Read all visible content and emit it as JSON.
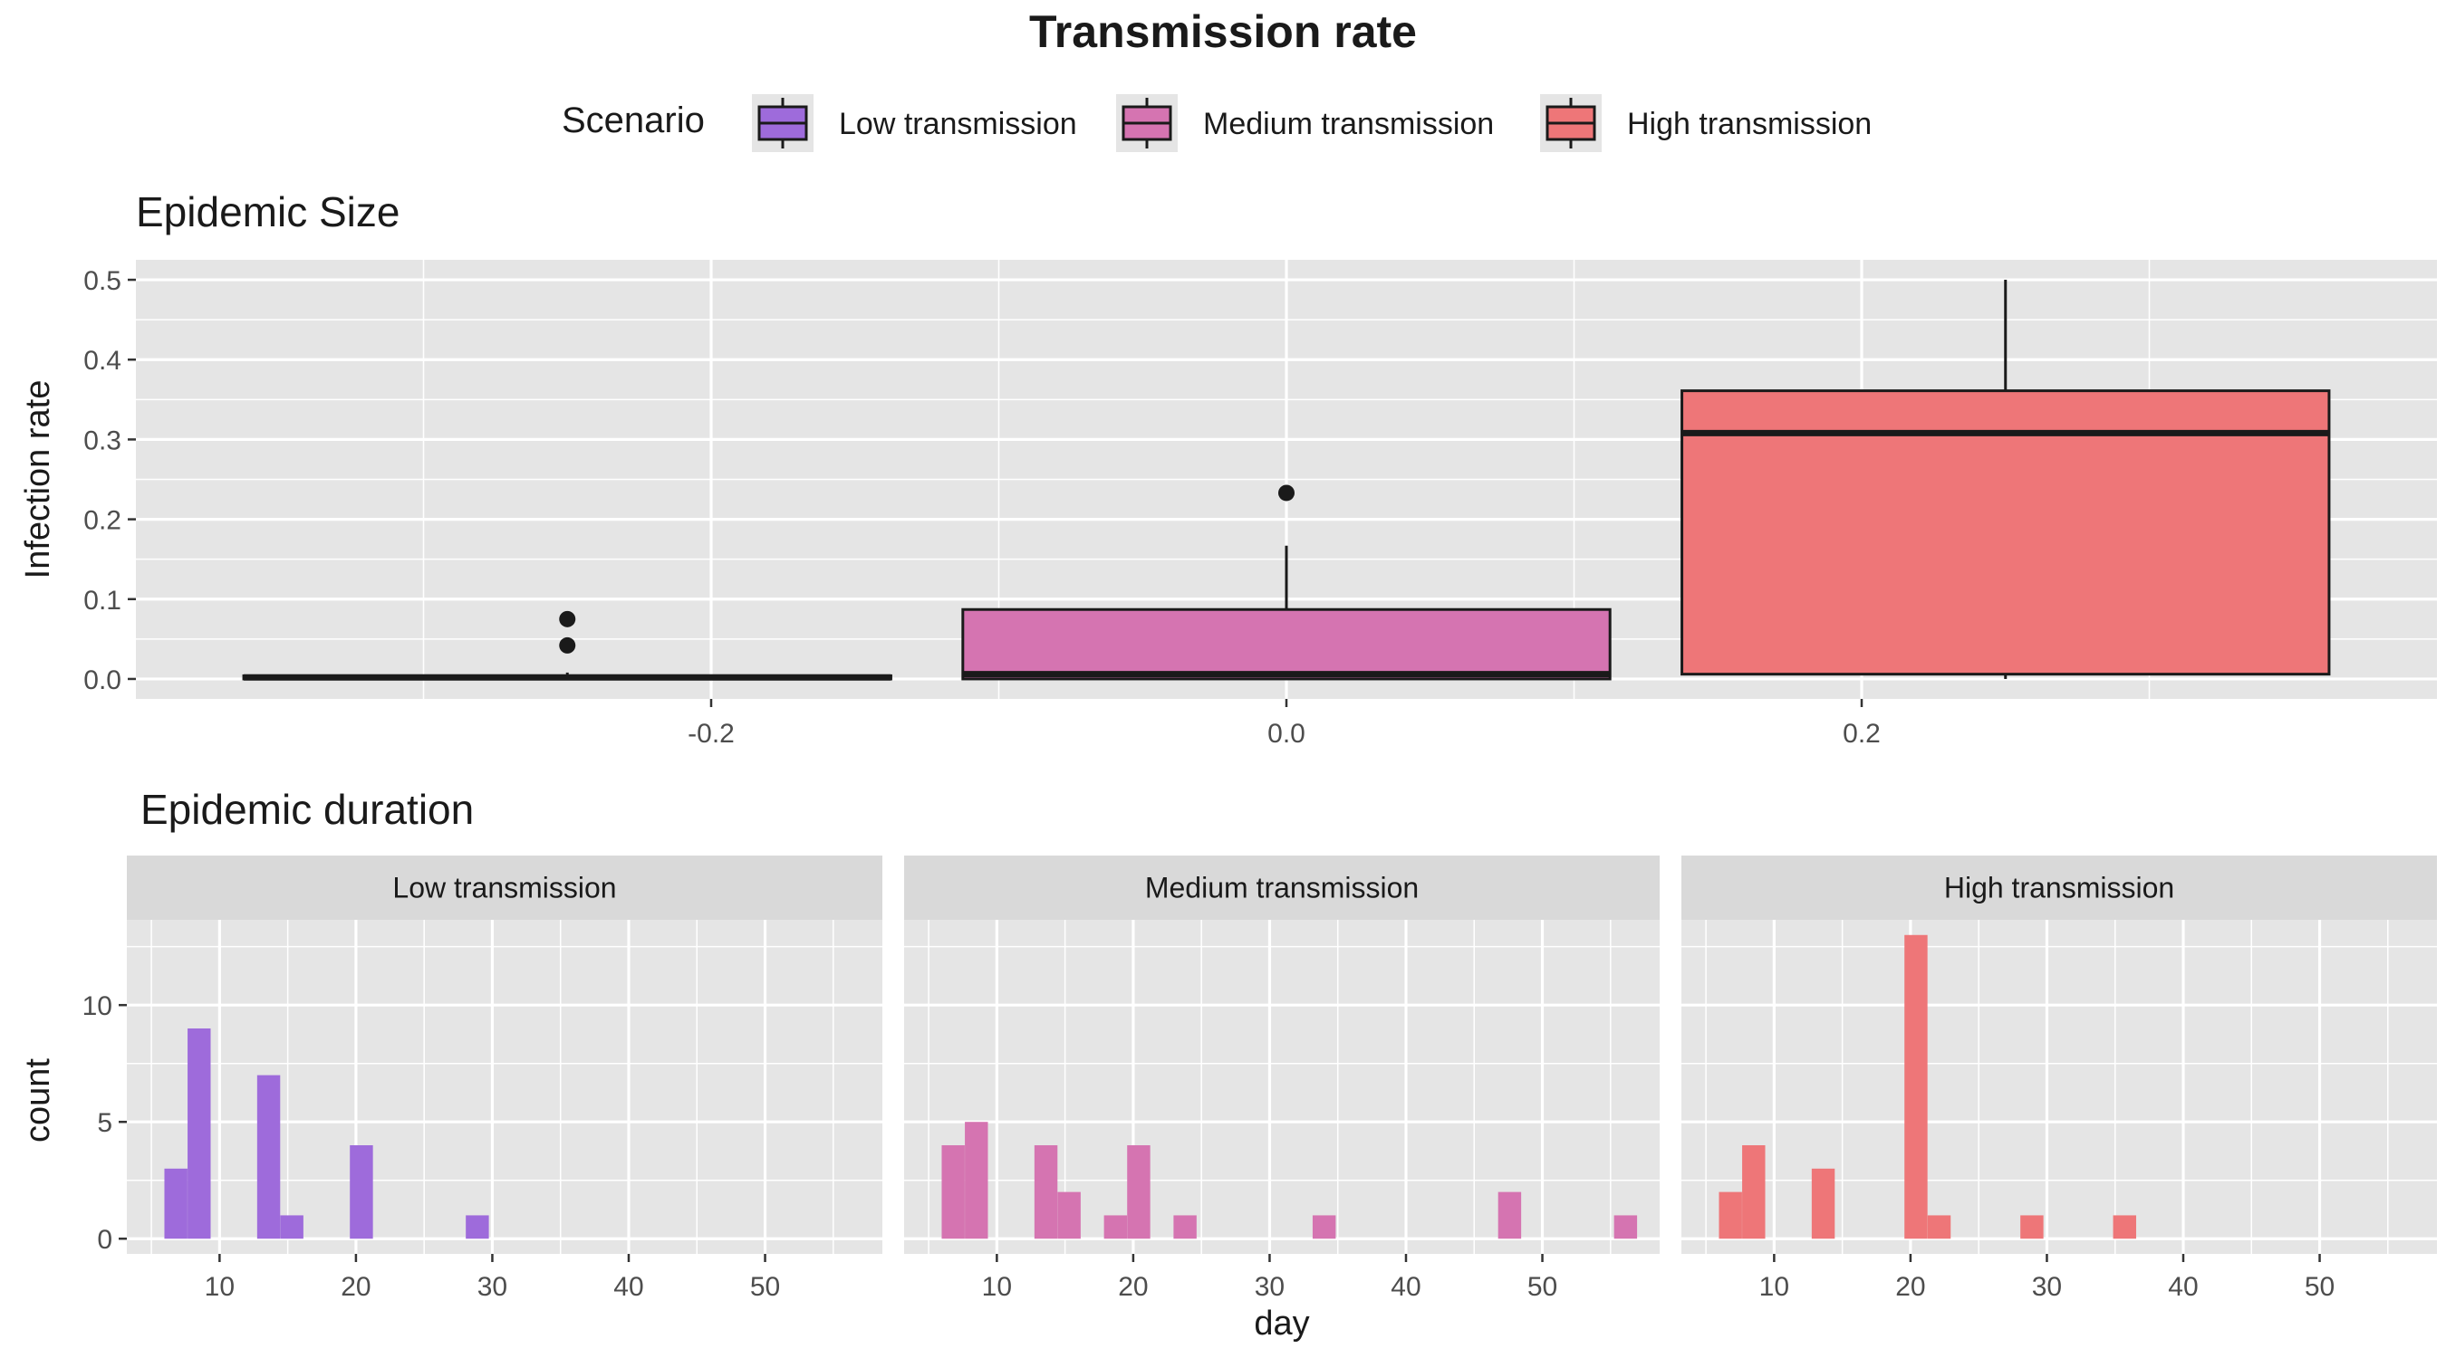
{
  "title": "Transmission rate",
  "legend": {
    "title": "Scenario",
    "placement": "top",
    "items": [
      {
        "label": "Low transmission",
        "color": "#9E6BDB"
      },
      {
        "label": "Medium transmission",
        "color": "#D574B1"
      },
      {
        "label": "High transmission",
        "color": "#EE7678"
      }
    ]
  },
  "colors": {
    "panel_bg": "#E5E5E5",
    "grid": "#FFFFFF",
    "strip_bg": "#D9D9D9",
    "outline": "#1A1A1A"
  },
  "chart_data": [
    {
      "type": "box",
      "title": "Epidemic Size",
      "xlabel": "",
      "ylabel": "Infection rate",
      "xlim": [
        -0.4,
        0.4
      ],
      "ylim": [
        -0.025,
        0.525
      ],
      "xticks": [
        -0.2,
        0.0,
        0.2
      ],
      "xtick_labels": [
        "-0.2",
        "0.0",
        "0.2"
      ],
      "yticks": [
        0.0,
        0.1,
        0.2,
        0.3,
        0.4,
        0.5
      ],
      "ytick_labels": [
        "0.0",
        "0.1",
        "0.2",
        "0.3",
        "0.4",
        "0.5"
      ],
      "grid": true,
      "boxes": [
        {
          "name": "Low transmission",
          "x_center": -0.25,
          "x_range": [
            -0.3625,
            -0.1375
          ],
          "min": 0.0,
          "q1": 0.0,
          "median": 0.002,
          "q3": 0.004,
          "max": 0.008,
          "outliers": [
            0.042,
            0.075
          ]
        },
        {
          "name": "Medium transmission",
          "x_center": 0.0,
          "x_range": [
            -0.1125,
            0.1125
          ],
          "min": 0.0,
          "q1": 0.0,
          "median": 0.006,
          "q3": 0.087,
          "max": 0.167,
          "outliers": [
            0.233
          ]
        },
        {
          "name": "High transmission",
          "x_center": 0.25,
          "x_range": [
            0.1375,
            0.3625
          ],
          "min": 0.0,
          "q1": 0.006,
          "median": 0.308,
          "q3": 0.361,
          "max": 0.5,
          "outliers": []
        }
      ]
    },
    {
      "type": "bar",
      "title": "Epidemic duration",
      "xlabel": "day",
      "ylabel": "count",
      "xlim": [
        3.2,
        58.6
      ],
      "ylim": [
        -0.65,
        13.65
      ],
      "xticks": [
        10,
        20,
        30,
        40,
        50
      ],
      "xtick_labels": [
        "10",
        "20",
        "30",
        "40",
        "50"
      ],
      "yticks": [
        0,
        5,
        10
      ],
      "ytick_labels": [
        "0",
        "5",
        "10"
      ],
      "grid": true,
      "binwidth": 1.69,
      "facets": [
        {
          "name": "Low transmission",
          "bins": [
            {
              "x": 6.8,
              "count": 3
            },
            {
              "x": 8.5,
              "count": 9
            },
            {
              "x": 13.6,
              "count": 7
            },
            {
              "x": 15.3,
              "count": 1
            },
            {
              "x": 20.4,
              "count": 4
            },
            {
              "x": 28.9,
              "count": 1
            }
          ]
        },
        {
          "name": "Medium transmission",
          "bins": [
            {
              "x": 6.8,
              "count": 4
            },
            {
              "x": 8.5,
              "count": 5
            },
            {
              "x": 13.6,
              "count": 4
            },
            {
              "x": 15.3,
              "count": 2
            },
            {
              "x": 18.7,
              "count": 1
            },
            {
              "x": 20.4,
              "count": 4
            },
            {
              "x": 23.8,
              "count": 1
            },
            {
              "x": 34.0,
              "count": 1
            },
            {
              "x": 47.6,
              "count": 2
            },
            {
              "x": 56.1,
              "count": 1
            }
          ]
        },
        {
          "name": "High transmission",
          "bins": [
            {
              "x": 6.8,
              "count": 2
            },
            {
              "x": 8.5,
              "count": 4
            },
            {
              "x": 13.6,
              "count": 3
            },
            {
              "x": 20.4,
              "count": 13
            },
            {
              "x": 22.1,
              "count": 1
            },
            {
              "x": 28.9,
              "count": 1
            },
            {
              "x": 35.7,
              "count": 1
            }
          ]
        }
      ]
    }
  ]
}
